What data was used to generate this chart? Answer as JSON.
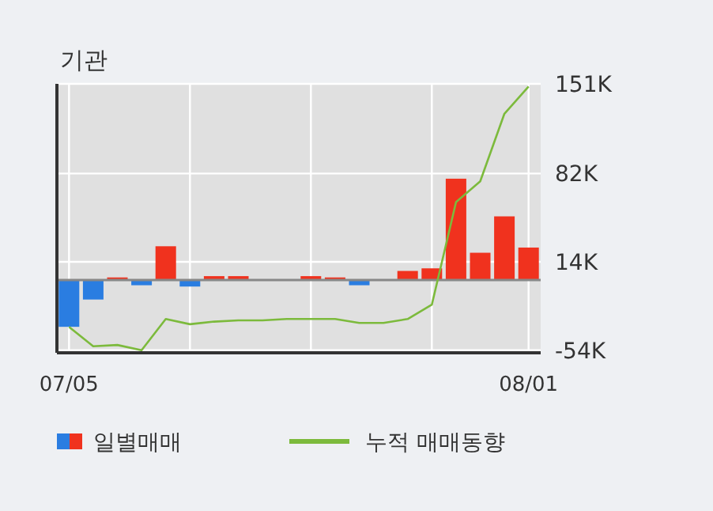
{
  "chart_data": {
    "type": "bar",
    "title": "기관",
    "categories": [
      "07/05",
      null,
      null,
      null,
      null,
      null,
      null,
      null,
      null,
      null,
      null,
      null,
      null,
      null,
      null,
      null,
      null,
      null,
      null,
      "08/01"
    ],
    "series": [
      {
        "name": "일별매매",
        "colors": [
          "#2a7de1",
          "#2a7de1",
          "#f0321e",
          "#2a7de1",
          "#f0321e",
          "#2a7de1",
          "#f0321e",
          "#f0321e",
          "#f0321e",
          "#f0321e",
          "#f0321e",
          "#f0321e",
          "#2a7de1",
          "#f0321e",
          "#f0321e",
          "#f0321e",
          "#f0321e",
          "#f0321e",
          "#f0321e",
          "#f0321e"
        ],
        "values": [
          -36,
          -15,
          2,
          -4,
          26,
          -5,
          3,
          3,
          0,
          0,
          3,
          2,
          -4,
          0,
          7,
          9,
          78,
          21,
          49,
          25
        ]
      },
      {
        "type": "line",
        "name": "누적 매매동향",
        "color": "#7cba3c",
        "values": [
          -36,
          -51,
          -50,
          -54,
          -30,
          -34,
          -32,
          -31,
          -31,
          -30,
          -30,
          -30,
          -33,
          -33,
          -30,
          -19,
          60,
          76,
          128,
          149
        ]
      }
    ],
    "ylim": [
      -56,
      151
    ],
    "yticks": [
      {
        "value": 151,
        "label": "151K"
      },
      {
        "value": 82,
        "label": "82K"
      },
      {
        "value": 14,
        "label": "14K"
      },
      {
        "value": -54,
        "label": "-54K"
      }
    ],
    "ref_lines": [
      {
        "axis": "y",
        "value": 0,
        "color": "#888888"
      }
    ],
    "grid": true,
    "legend": "bottom",
    "marker": "none",
    "line_style": "solid"
  }
}
